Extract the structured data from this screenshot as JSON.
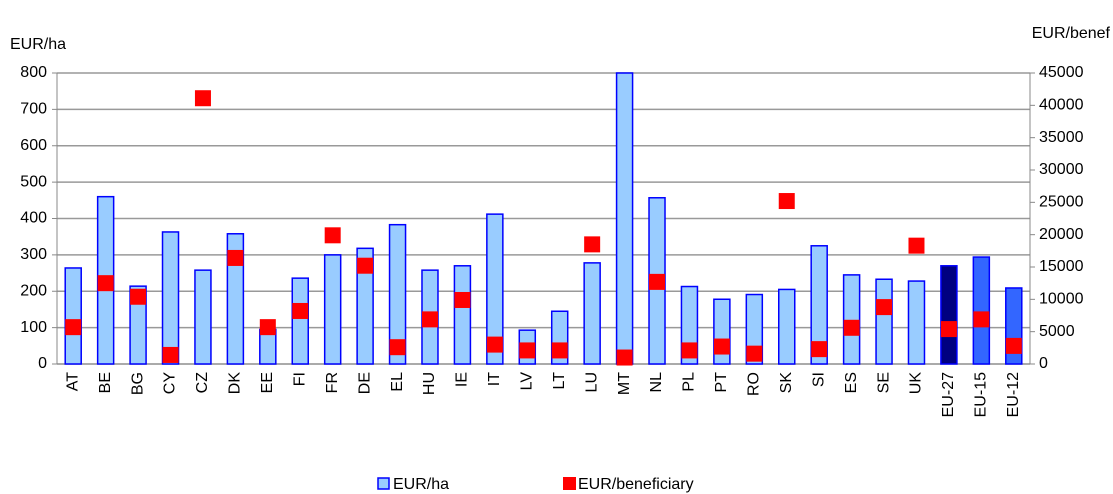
{
  "chart_data": {
    "type": "bar_scatter",
    "y_label": "EUR/ha",
    "y2_label": "EUR/benef",
    "categories": [
      "AT",
      "BE",
      "BG",
      "CY",
      "CZ",
      "DK",
      "EE",
      "FI",
      "FR",
      "DE",
      "EL",
      "HU",
      "IE",
      "IT",
      "LV",
      "LT",
      "LU",
      "MT",
      "NL",
      "PL",
      "PT",
      "RO",
      "SK",
      "SI",
      "ES",
      "SE",
      "UK",
      "EU-27",
      "EU-15",
      "EU-12"
    ],
    "series": [
      {
        "name": "EUR/ha",
        "type": "bar",
        "color": "#99ccff",
        "edge_color": "#0000ff",
        "colors": [
          "#99ccff",
          "#99ccff",
          "#99ccff",
          "#99ccff",
          "#99ccff",
          "#99ccff",
          "#99ccff",
          "#99ccff",
          "#99ccff",
          "#99ccff",
          "#99ccff",
          "#99ccff",
          "#99ccff",
          "#99ccff",
          "#99ccff",
          "#99ccff",
          "#99ccff",
          "#99ccff",
          "#99ccff",
          "#99ccff",
          "#99ccff",
          "#99ccff",
          "#99ccff",
          "#99ccff",
          "#99ccff",
          "#99ccff",
          "#99ccff",
          "#000080",
          "#3366ff",
          "#3366ff"
        ],
        "values": [
          264,
          460,
          214,
          363,
          258,
          358,
          95,
          236,
          300,
          318,
          383,
          258,
          270,
          412,
          93,
          145,
          278,
          800,
          457,
          213,
          178,
          191,
          205,
          325,
          245,
          233,
          228,
          270,
          294,
          209
        ]
      },
      {
        "name": "EUR/beneficiary",
        "type": "scatter",
        "axis": "y2",
        "color": "#ff0000",
        "values": [
          5700,
          12500,
          10400,
          1400,
          41100,
          16400,
          5700,
          8200,
          19900,
          15200,
          2600,
          6900,
          9900,
          3000,
          2100,
          2100,
          18500,
          1000,
          12700,
          2100,
          2700,
          1600,
          25200,
          2300,
          5600,
          8800,
          18300,
          5400,
          6900,
          2800
        ]
      }
    ],
    "ylim": [
      0,
      800
    ],
    "yticks": [
      0,
      100,
      200,
      300,
      400,
      500,
      600,
      700,
      800
    ],
    "y2lim": [
      0,
      45000
    ],
    "y2ticks": [
      0,
      5000,
      10000,
      15000,
      20000,
      25000,
      30000,
      35000,
      40000,
      45000
    ],
    "grid": true,
    "legend": "bottom"
  }
}
